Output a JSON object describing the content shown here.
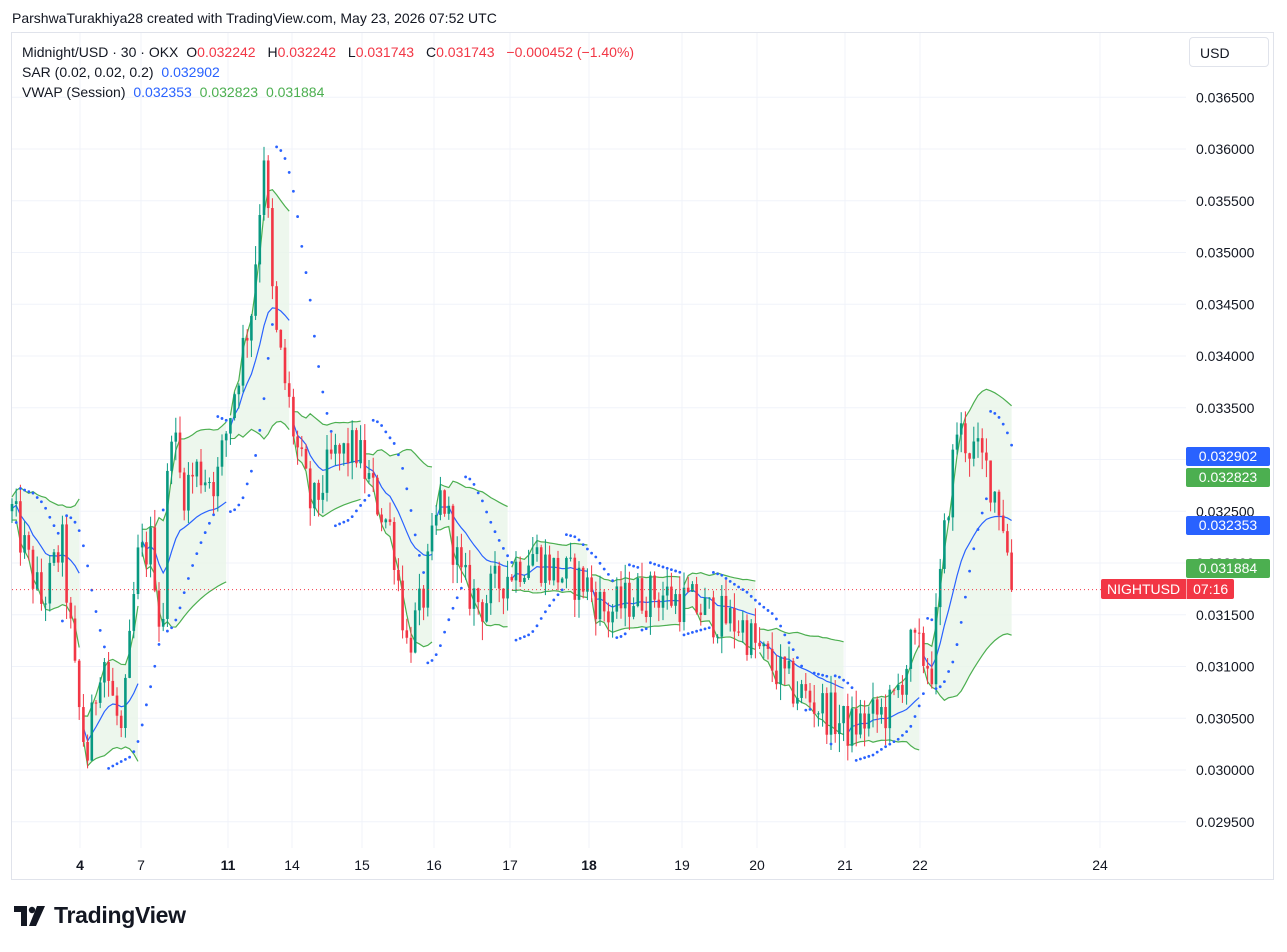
{
  "header": {
    "text": "ParshwaTurakhiya28 created with TradingView.com, May 23, 2026 07:52 UTC"
  },
  "legend": {
    "symbol": "Midnight/USD · 30 · OKX",
    "o_label": "O",
    "o_value": "0.032242",
    "h_label": "H",
    "h_value": "0.032242",
    "l_label": "L",
    "l_value": "0.031743",
    "c_label": "C",
    "c_value": "0.031743",
    "change": "−0.000452 (−1.40%)",
    "sar_label": "SAR (0.02, 0.02, 0.2)",
    "sar_value": "0.032902",
    "vwap_label": "VWAP (Session)",
    "vwap_value": "0.032353",
    "vwap_upper": "0.032823",
    "vwap_lower": "0.031884"
  },
  "currency": "USD",
  "price_tags": {
    "sar": "0.032902",
    "vwap_upper": "0.032823",
    "vwap": "0.032353",
    "vwap_lower": "0.031884",
    "last_price": "0.031743"
  },
  "night_tag": {
    "symbol": "NIGHTUSD",
    "countdown": "07:16"
  },
  "footer": {
    "brand": "TradingView"
  },
  "colors": {
    "up": "#089981",
    "down": "#f23645",
    "sar": "#2962ff",
    "vwap": "#2962ff",
    "bands": "#4caf50",
    "band_fill": "#e8f5e9"
  },
  "chart_data": {
    "type": "candlestick",
    "title": "Midnight/USD · 30 · OKX",
    "y_ticks": [
      "0.029500",
      "0.030000",
      "0.030500",
      "0.031000",
      "0.031500",
      "0.032000",
      "0.032500",
      "0.033000",
      "0.033500",
      "0.034000",
      "0.034500",
      "0.035000",
      "0.035500",
      "0.036000",
      "0.036500"
    ],
    "x_ticks": [
      {
        "label": "4",
        "bold": true
      },
      {
        "label": "7",
        "bold": false
      },
      {
        "label": "11",
        "bold": true
      },
      {
        "label": "14",
        "bold": false
      },
      {
        "label": "15",
        "bold": false
      },
      {
        "label": "16",
        "bold": false
      },
      {
        "label": "17",
        "bold": false
      },
      {
        "label": "18",
        "bold": true
      },
      {
        "label": "19",
        "bold": false
      },
      {
        "label": "20",
        "bold": false
      },
      {
        "label": "21",
        "bold": false
      },
      {
        "label": "22",
        "bold": false
      },
      {
        "label": "24",
        "bold": false
      }
    ],
    "ylim": [
      0.02925,
      0.03695
    ],
    "grid": true,
    "last_price": 0.031743,
    "price_key_points": [
      [
        0,
        0.0325
      ],
      [
        30,
        0.0316
      ],
      [
        50,
        0.0322
      ],
      [
        65,
        0.0307
      ],
      [
        75,
        0.0301
      ],
      [
        90,
        0.0312
      ],
      [
        100,
        0.0307
      ],
      [
        110,
        0.0303
      ],
      [
        125,
        0.032
      ],
      [
        140,
        0.0322
      ],
      [
        150,
        0.0312
      ],
      [
        158,
        0.0335
      ],
      [
        170,
        0.0327
      ],
      [
        185,
        0.0329
      ],
      [
        205,
        0.0328
      ],
      [
        225,
        0.0338
      ],
      [
        240,
        0.0345
      ],
      [
        252,
        0.036
      ],
      [
        262,
        0.0343
      ],
      [
        270,
        0.0339
      ],
      [
        285,
        0.0331
      ],
      [
        300,
        0.0325
      ],
      [
        320,
        0.033
      ],
      [
        345,
        0.0331
      ],
      [
        360,
        0.0327
      ],
      [
        380,
        0.0323
      ],
      [
        395,
        0.0312
      ],
      [
        410,
        0.0316
      ],
      [
        430,
        0.0327
      ],
      [
        450,
        0.0318
      ],
      [
        470,
        0.0316
      ],
      [
        495,
        0.0319
      ],
      [
        520,
        0.0321
      ],
      [
        545,
        0.0319
      ],
      [
        575,
        0.0318
      ],
      [
        595,
        0.0315
      ],
      [
        625,
        0.0317
      ],
      [
        650,
        0.0317
      ],
      [
        680,
        0.0316
      ],
      [
        700,
        0.0315
      ],
      [
        730,
        0.0314
      ],
      [
        750,
        0.0311
      ],
      [
        780,
        0.0308
      ],
      [
        810,
        0.0306
      ],
      [
        835,
        0.0304
      ],
      [
        860,
        0.0305
      ],
      [
        880,
        0.0306
      ],
      [
        900,
        0.0312
      ],
      [
        920,
        0.031
      ],
      [
        935,
        0.0325
      ],
      [
        945,
        0.0333
      ],
      [
        960,
        0.0331
      ],
      [
        975,
        0.0329
      ],
      [
        990,
        0.0325
      ],
      [
        1000,
        0.03174
      ]
    ]
  }
}
